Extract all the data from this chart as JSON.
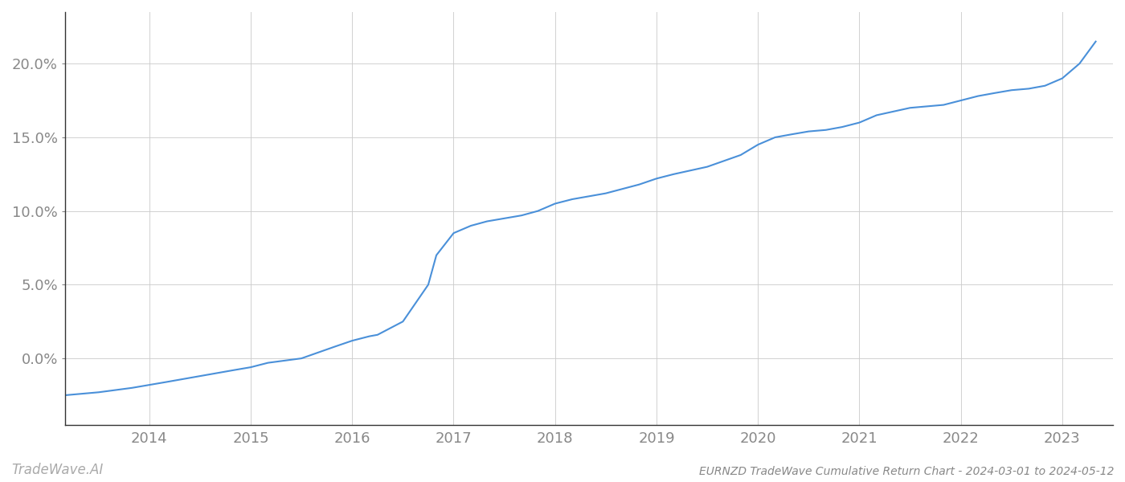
{
  "x_years": [
    2013.17,
    2013.5,
    2013.83,
    2014.0,
    2014.17,
    2014.5,
    2014.83,
    2015.0,
    2015.17,
    2015.5,
    2015.83,
    2016.0,
    2016.17,
    2016.25,
    2016.5,
    2016.75,
    2016.83,
    2017.0,
    2017.17,
    2017.33,
    2017.5,
    2017.67,
    2017.83,
    2018.0,
    2018.17,
    2018.5,
    2018.83,
    2019.0,
    2019.17,
    2019.5,
    2019.83,
    2020.0,
    2020.17,
    2020.33,
    2020.5,
    2020.67,
    2020.83,
    2021.0,
    2021.17,
    2021.5,
    2021.83,
    2022.0,
    2022.17,
    2022.33,
    2022.5,
    2022.67,
    2022.83,
    2023.0,
    2023.17,
    2023.33
  ],
  "y_values": [
    -2.5,
    -2.3,
    -2.0,
    -1.8,
    -1.6,
    -1.2,
    -0.8,
    -0.6,
    -0.3,
    0.0,
    0.8,
    1.2,
    1.5,
    1.6,
    2.5,
    5.0,
    7.0,
    8.5,
    9.0,
    9.3,
    9.5,
    9.7,
    10.0,
    10.5,
    10.8,
    11.2,
    11.8,
    12.2,
    12.5,
    13.0,
    13.8,
    14.5,
    15.0,
    15.2,
    15.4,
    15.5,
    15.7,
    16.0,
    16.5,
    17.0,
    17.2,
    17.5,
    17.8,
    18.0,
    18.2,
    18.3,
    18.5,
    19.0,
    20.0,
    21.5
  ],
  "line_color": "#4a90d9",
  "line_width": 1.5,
  "background_color": "#ffffff",
  "grid_color": "#cccccc",
  "title": "EURNZD TradeWave Cumulative Return Chart - 2024-03-01 to 2024-05-12",
  "title_fontsize": 10,
  "title_color": "#888888",
  "watermark_text": "TradeWave.AI",
  "watermark_fontsize": 12,
  "watermark_color": "#aaaaaa",
  "xtick_labels": [
    "2014",
    "2015",
    "2016",
    "2017",
    "2018",
    "2019",
    "2020",
    "2021",
    "2022",
    "2023"
  ],
  "xtick_positions": [
    2014,
    2015,
    2016,
    2017,
    2018,
    2019,
    2020,
    2021,
    2022,
    2023
  ],
  "ytick_values": [
    0.0,
    5.0,
    10.0,
    15.0,
    20.0
  ],
  "xlim": [
    2013.17,
    2023.5
  ],
  "ylim": [
    -4.5,
    23.5
  ],
  "spine_color": "#333333",
  "tick_label_color": "#888888",
  "tick_fontsize": 13
}
